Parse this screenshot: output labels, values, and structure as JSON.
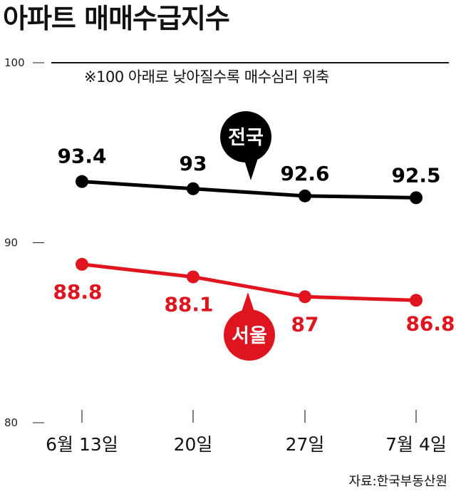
{
  "chart_data": {
    "type": "line",
    "title": "아파트 매매수급지수",
    "note": "※100 아래로 낮아질수록 매수심리 위축",
    "source": "자료:한국부동산원",
    "categories": [
      "6월 13일",
      "20일",
      "27일",
      "7월 4일"
    ],
    "y_ticks": [
      "100",
      "90",
      "80"
    ],
    "ylim": [
      80,
      100
    ],
    "grid": false,
    "series": [
      {
        "name": "전국",
        "values": [
          93.4,
          93.0,
          92.6,
          92.5
        ],
        "labels": [
          "93.4",
          "93",
          "92.6",
          "92.5"
        ],
        "color": "#000000"
      },
      {
        "name": "서울",
        "values": [
          88.8,
          88.1,
          87.0,
          86.8
        ],
        "labels": [
          "88.8",
          "88.1",
          "87",
          "86.8"
        ],
        "color": "#e0141e"
      }
    ]
  }
}
